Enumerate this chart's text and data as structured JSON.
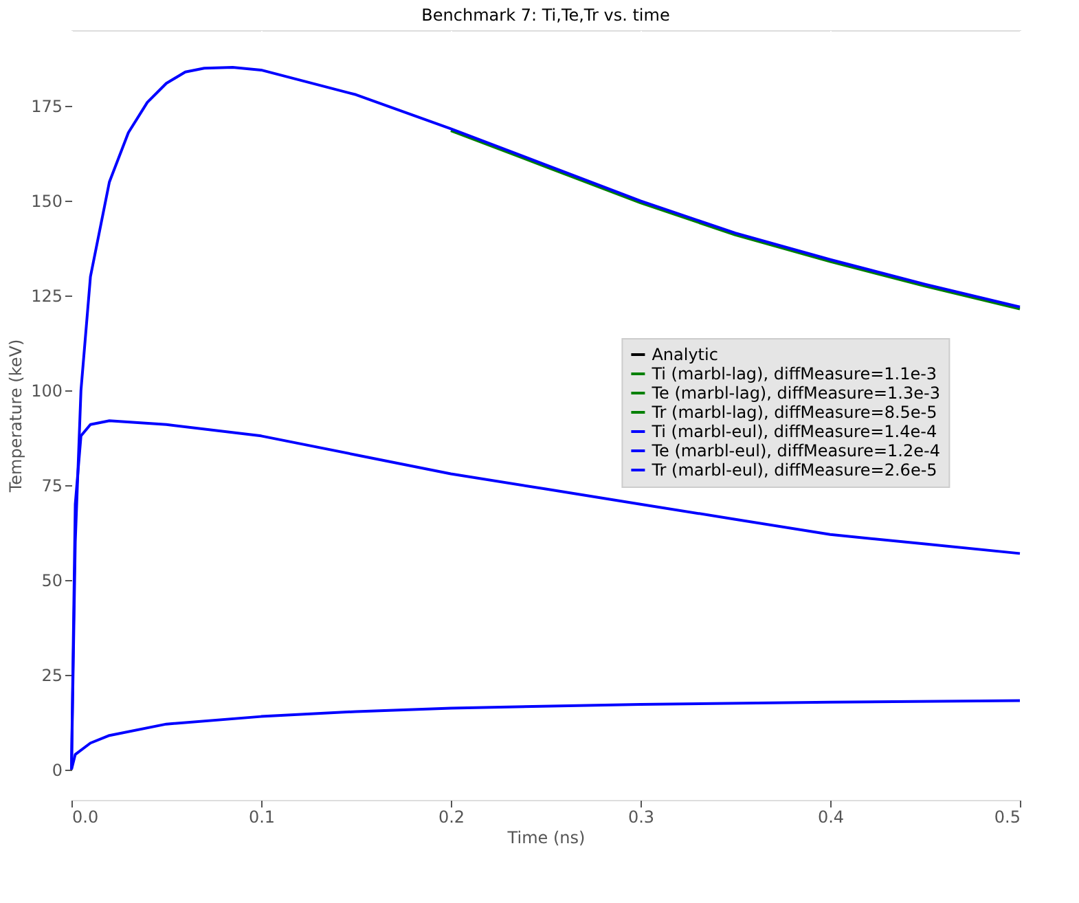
{
  "chart_data": {
    "type": "line",
    "title": "Benchmark 7: Ti,Te,Tr vs. time",
    "xlabel": "Time (ns)",
    "ylabel": "Temperature (keV)",
    "xlim": [
      0,
      0.5
    ],
    "ylim": [
      -8,
      195
    ],
    "xticks": [
      {
        "value": 0,
        "label": "0.0"
      },
      0.1,
      0.2,
      0.3,
      0.4,
      0.5
    ],
    "yticks": [
      0,
      25,
      50,
      75,
      100,
      125,
      150,
      175
    ],
    "grid": true,
    "legend": "right",
    "line_style": "solid",
    "marker": "none",
    "series": [
      {
        "name": "Analytic",
        "color": "#000000"
      },
      {
        "name": "Ti (marbl-lag), diffMeasure=1.1e-3",
        "color": "#008000",
        "x": [
          0.2,
          0.25,
          0.3,
          0.35,
          0.4,
          0.45,
          0.5
        ],
        "values": [
          168.5,
          159,
          149.5,
          141,
          134,
          127.5,
          121.5
        ]
      },
      {
        "name": "Te (marbl-lag), diffMeasure=1.3e-3",
        "color": "#008000"
      },
      {
        "name": "Tr (marbl-lag), diffMeasure=8.5e-5",
        "color": "#008000"
      },
      {
        "name": "Ti (marbl-eul), diffMeasure=1.4e-4",
        "color": "#0000ff",
        "x": [
          0,
          0.002,
          0.005,
          0.01,
          0.02,
          0.03,
          0.04,
          0.05,
          0.06,
          0.07,
          0.085,
          0.1,
          0.15,
          0.2,
          0.25,
          0.3,
          0.35,
          0.4,
          0.45,
          0.5
        ],
        "values": [
          0,
          60,
          100,
          130,
          155,
          168,
          176,
          181,
          184,
          185,
          185.2,
          184.5,
          178,
          169,
          159.5,
          150,
          141.5,
          134.5,
          128,
          122
        ]
      },
      {
        "name": "Te (marbl-eul), diffMeasure=1.2e-4",
        "color": "#0000ff",
        "x": [
          0,
          0.002,
          0.005,
          0.01,
          0.02,
          0.05,
          0.1,
          0.15,
          0.2,
          0.25,
          0.3,
          0.35,
          0.4,
          0.45,
          0.5
        ],
        "values": [
          0,
          70,
          88,
          91,
          92,
          91,
          88,
          83,
          78,
          74,
          70,
          66,
          62,
          59.5,
          57
        ]
      },
      {
        "name": "Tr (marbl-eul), diffMeasure=2.6e-5",
        "color": "#0000ff",
        "x": [
          0,
          0.002,
          0.01,
          0.02,
          0.05,
          0.1,
          0.15,
          0.2,
          0.3,
          0.4,
          0.5
        ],
        "values": [
          0,
          4,
          7,
          9,
          12,
          14,
          15.3,
          16.2,
          17.2,
          17.8,
          18.2
        ]
      }
    ]
  }
}
